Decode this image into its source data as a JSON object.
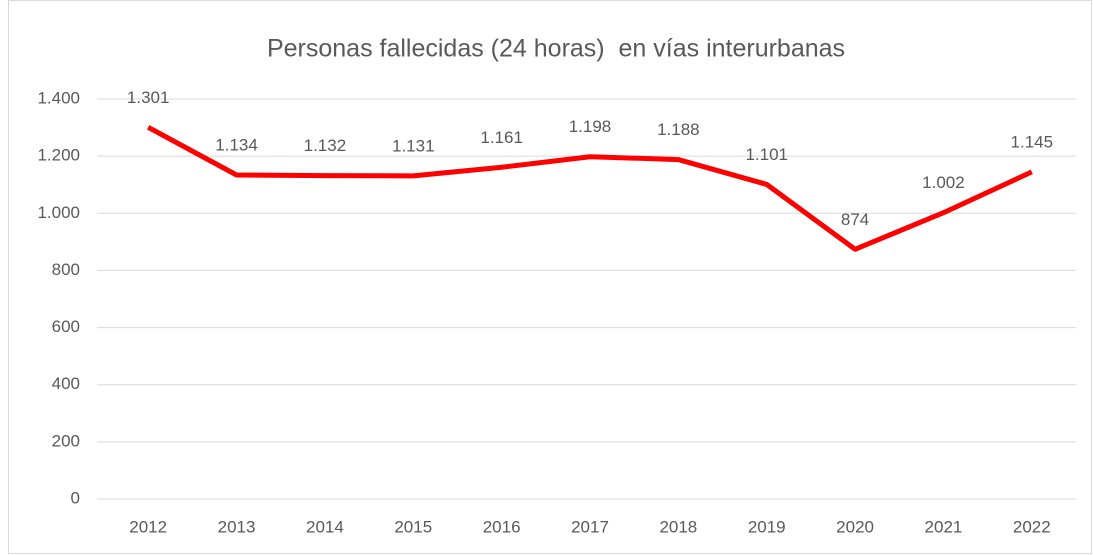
{
  "chart_data": {
    "type": "line",
    "title": "Personas fallecidas (24 horas)  en vías interurbanas",
    "categories": [
      "2012",
      "2013",
      "2014",
      "2015",
      "2016",
      "2017",
      "2018",
      "2019",
      "2020",
      "2021",
      "2022"
    ],
    "series": [
      {
        "name": "Personas fallecidas",
        "color": "#ff0000",
        "values": [
          1301,
          1134,
          1132,
          1131,
          1161,
          1198,
          1188,
          1101,
          874,
          1002,
          1145
        ],
        "value_labels": [
          "1.301",
          "1.134",
          "1.132",
          "1.131",
          "1.161",
          "1.198",
          "1.188",
          "1.101",
          "874",
          "1.002",
          "1.145"
        ]
      }
    ],
    "ylim": [
      0,
      1400
    ],
    "yticks": [
      0,
      200,
      400,
      600,
      800,
      {
        "value": 1000,
        "label": "1.000"
      },
      {
        "value": 1200,
        "label": "1.200"
      },
      {
        "value": 1400,
        "label": "1.400"
      }
    ],
    "grid": true
  }
}
